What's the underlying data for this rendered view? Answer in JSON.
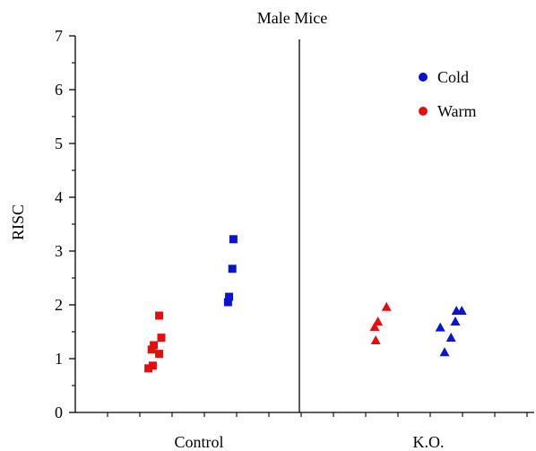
{
  "chart_data": {
    "type": "scatter",
    "title": "Male Mice",
    "xlabel": "",
    "ylabel": "RISC",
    "ylim": [
      0,
      7
    ],
    "yticks": [
      "0",
      "1",
      "2",
      "3",
      "4",
      "5",
      "6",
      "7"
    ],
    "categories": [
      "Control",
      "K.O."
    ],
    "grid": false,
    "legend_placement": "top-right",
    "legend": [
      {
        "label": "Cold",
        "color": "#0a14c8"
      },
      {
        "label": "Warm",
        "color": "#e01010"
      }
    ],
    "series": [
      {
        "group": "Control",
        "condition": "Warm",
        "marker": "square",
        "color": "#e01010",
        "points": [
          {
            "x": -0.47,
            "y": 0.82
          },
          {
            "x": -0.43,
            "y": 0.87
          },
          {
            "x": -0.44,
            "y": 1.17
          },
          {
            "x": -0.42,
            "y": 1.25
          },
          {
            "x": -0.37,
            "y": 1.09
          },
          {
            "x": -0.37,
            "y": 1.8
          },
          {
            "x": -0.35,
            "y": 1.39
          }
        ]
      },
      {
        "group": "Control",
        "condition": "Cold",
        "marker": "square",
        "color": "#0a14c8",
        "points": [
          {
            "x": 0.27,
            "y": 2.05
          },
          {
            "x": 0.28,
            "y": 2.15
          },
          {
            "x": 0.31,
            "y": 2.67
          },
          {
            "x": 0.32,
            "y": 3.22
          }
        ]
      },
      {
        "group": "K.O.",
        "condition": "Warm",
        "marker": "triangle",
        "color": "#e01010",
        "points": [
          {
            "x": -0.49,
            "y": 1.35
          },
          {
            "x": -0.5,
            "y": 1.6
          },
          {
            "x": -0.47,
            "y": 1.7
          },
          {
            "x": -0.39,
            "y": 1.97
          }
        ]
      },
      {
        "group": "K.O.",
        "condition": "Cold",
        "marker": "triangle",
        "color": "#0a14c8",
        "points": [
          {
            "x": 0.11,
            "y": 1.59
          },
          {
            "x": 0.15,
            "y": 1.13
          },
          {
            "x": 0.21,
            "y": 1.4
          },
          {
            "x": 0.25,
            "y": 1.7
          },
          {
            "x": 0.26,
            "y": 1.9
          },
          {
            "x": 0.31,
            "y": 1.9
          }
        ]
      }
    ]
  }
}
